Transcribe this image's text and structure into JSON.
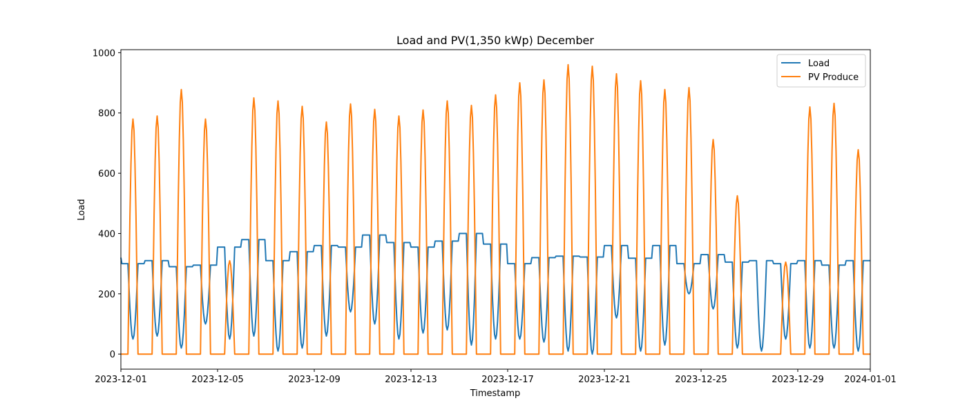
{
  "colors": {
    "load": "#1f77b4",
    "pv": "#ff7f0e"
  },
  "chart_data": {
    "type": "line",
    "title": "Load and PV(1,350 kWp) December",
    "xlabel": "Timestamp",
    "ylabel": "Load",
    "xlim": [
      "2023-12-01",
      "2024-01-01"
    ],
    "ylim": [
      -50,
      1010
    ],
    "xticks": [
      "2023-12-01",
      "2023-12-05",
      "2023-12-09",
      "2023-12-13",
      "2023-12-17",
      "2023-12-21",
      "2023-12-25",
      "2023-12-29",
      "2024-01-01"
    ],
    "yticks": [
      0,
      200,
      400,
      600,
      800,
      1000
    ],
    "legend": "top-right",
    "grid": false,
    "series": [
      {
        "name": "Load",
        "pv_free_level": [
          300,
          310,
          290,
          295,
          355,
          380,
          310,
          340,
          360,
          355,
          395,
          370,
          355,
          375,
          400,
          365,
          300,
          320,
          325,
          322,
          360,
          318,
          360,
          300,
          330,
          305,
          310,
          300,
          310,
          295,
          310
        ],
        "day_level": [
          50,
          60,
          20,
          100,
          50,
          60,
          10,
          20,
          60,
          140,
          100,
          50,
          70,
          80,
          30,
          50,
          50,
          40,
          10,
          0,
          120,
          10,
          30,
          200,
          150,
          20,
          10,
          50,
          20,
          20,
          10
        ]
      },
      {
        "name": "PV Produce",
        "daily_peak": [
          780,
          790,
          878,
          780,
          310,
          850,
          840,
          822,
          770,
          830,
          812,
          790,
          810,
          840,
          825,
          860,
          900,
          910,
          960,
          955,
          930,
          907,
          878,
          884,
          712,
          525,
          0,
          305,
          820,
          832,
          678
        ]
      }
    ]
  }
}
